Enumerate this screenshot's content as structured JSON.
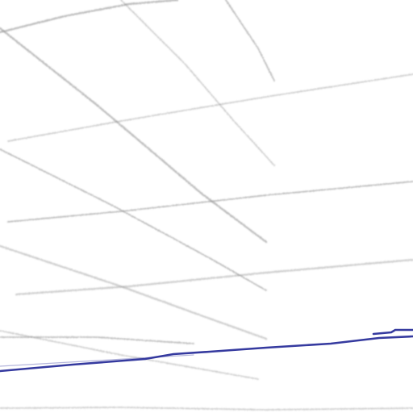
{
  "sketch": {
    "kind": "perspective-construction-drawing",
    "guide_line_color": "#8a8a8a",
    "ink_line_color": "#2a2f9a",
    "paper_color": "#ffffff",
    "guide_count": 12,
    "ink_count": 2
  }
}
